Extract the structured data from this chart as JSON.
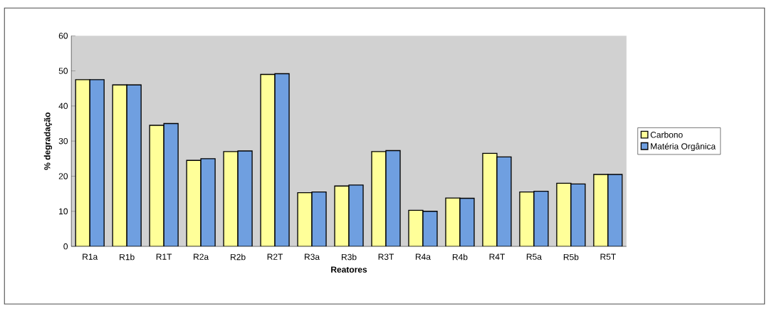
{
  "chart_data": {
    "type": "bar",
    "xlabel": "Reatores",
    "ylabel": "% degradação",
    "categories": [
      "R1a",
      "R1b",
      "R1T",
      "R2a",
      "R2b",
      "R2T",
      "R3a",
      "R3b",
      "R3T",
      "R4a",
      "R4b",
      "R4T",
      "R5a",
      "R5b",
      "R5T"
    ],
    "series": [
      {
        "name": "Carbono",
        "color": "#ffff99",
        "values": [
          47.5,
          46,
          34.5,
          24.5,
          27,
          49,
          15.3,
          17.2,
          27,
          10.3,
          13.8,
          26.5,
          15.5,
          18,
          20.5
        ]
      },
      {
        "name": "Matéria Orgânica",
        "color": "#6f9fe0",
        "values": [
          47.5,
          46,
          35,
          25,
          27.2,
          49.2,
          15.5,
          17.5,
          27.3,
          10,
          13.7,
          25.5,
          15.7,
          17.8,
          20.5
        ]
      }
    ],
    "ylim": [
      0,
      60
    ],
    "yticks": [
      0,
      10,
      20,
      30,
      40,
      50,
      60
    ],
    "legend": "right",
    "grid": false
  }
}
